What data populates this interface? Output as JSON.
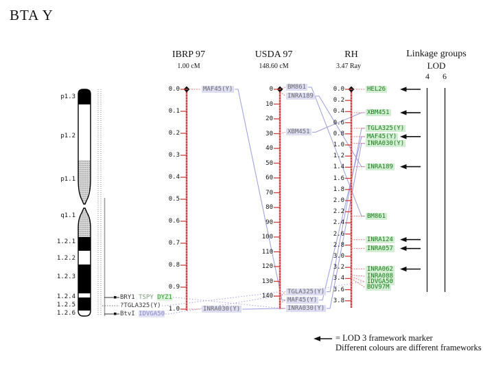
{
  "title": "BTA Y",
  "maps": [
    {
      "id": "ibrp",
      "header": "IBRP 97",
      "subheader": "1.00 cM",
      "ticks": [
        "0.0",
        "0.1",
        "0.2",
        "0.3",
        "0.4",
        "0.5",
        "0.6",
        "0.7",
        "0.8",
        "0.9",
        "1.0"
      ],
      "markers": [
        {
          "name": "MAF45(Y)",
          "pos": 0.0
        },
        {
          "name": "INRA030(Y)",
          "pos": 1.0
        }
      ]
    },
    {
      "id": "usda",
      "header": "USDA 97",
      "subheader": "148.60 cM",
      "ticks": [
        "0",
        "10",
        "20",
        "30",
        "40",
        "50",
        "60",
        "70",
        "80",
        "90",
        "100",
        "110",
        "120",
        "130",
        "140"
      ],
      "markers": [
        {
          "name": "BM861",
          "pos": 0.0,
          "label_pos": -1.4
        },
        {
          "name": "INRA189",
          "pos": 1.5,
          "label_pos": 4.6
        },
        {
          "name": "XBM451",
          "pos": 30.0,
          "label_pos": 29.0
        },
        {
          "name": "TGLA325(Y)",
          "pos": 140.5,
          "label_pos": 137.0
        },
        {
          "name": "MAF45(Y)",
          "pos": 145.0,
          "label_pos": 142.7
        },
        {
          "name": "INRA030(Y)",
          "pos": 148.6,
          "label_pos": 148.3
        }
      ]
    },
    {
      "id": "rh",
      "header": "RH",
      "subheader": "3.47 Ray",
      "ticks": [
        "0.0",
        "0.2",
        "0.4",
        "0.6",
        "0.8",
        "1.0",
        "1.2",
        "1.4",
        "1.6",
        "1.8",
        "2.0",
        "2.2",
        "2.4",
        "2.6",
        "2.8",
        "3.0",
        "3.2",
        "3.4",
        "3.6",
        "3.8"
      ],
      "markers": [
        {
          "name": "HEL26",
          "pos": 0.0,
          "arrow": true
        },
        {
          "name": "XBM451",
          "pos": 0.42,
          "arrow": true
        },
        {
          "name": "TGLA325(Y)",
          "pos": 0.7
        },
        {
          "name": "MAF45(Y)",
          "pos": 0.85,
          "arrow": true
        },
        {
          "name": "INRA030(Y)",
          "pos": 0.97
        },
        {
          "name": "INRA189",
          "pos": 1.39,
          "arrow": true
        },
        {
          "name": "BM861",
          "pos": 2.28
        },
        {
          "name": "INRA124",
          "pos": 2.7,
          "arrow": true
        },
        {
          "name": "INRA057",
          "pos": 2.86,
          "arrow": true
        },
        {
          "name": "INRA062",
          "pos": 3.23,
          "arrow": true
        },
        {
          "name": "INRA088",
          "pos": 3.34,
          "label_pos": 3.36
        },
        {
          "name": "IDVGA50",
          "pos": 3.37,
          "label_pos": 3.46
        },
        {
          "name": "BOV97M",
          "pos": 3.4,
          "label_pos": 3.56
        }
      ]
    }
  ],
  "ideogram": {
    "bands": [
      {
        "label": "p1.3",
        "fill": "black"
      },
      {
        "label": "p1.2",
        "fill": "white"
      },
      {
        "label": "p1.1",
        "fill": "stipple"
      },
      {
        "label": "q1.1",
        "fill": "stipple"
      },
      {
        "label": "1.2.1",
        "fill": "black"
      },
      {
        "label": "1.2.2",
        "fill": "white"
      },
      {
        "label": "1.2.3",
        "fill": "black"
      },
      {
        "label": "1.2.4",
        "fill": "white"
      },
      {
        "label": "1.2.5",
        "fill": "black"
      },
      {
        "label": "1.2.6",
        "fill": "white"
      }
    ],
    "bottom_markers": [
      {
        "id": "DYZ1row",
        "line": "solid",
        "parts": [
          {
            "text": "BRY1 ",
            "color": "#333333"
          },
          {
            "text": "TSPY ",
            "color": "#7a9a7a"
          },
          {
            "text": "DYZ1",
            "color": "#2a9a2a",
            "bg": "#dcf2dc"
          }
        ]
      },
      {
        "id": "TGLA325",
        "line": "dotted",
        "parts": [
          {
            "text": "?TGLA325(Y)",
            "color": "#333333"
          }
        ]
      },
      {
        "id": "IDVGA50",
        "line": "solid",
        "parts": [
          {
            "text": "BtvI ",
            "color": "#333333"
          },
          {
            "text": "IDVGA50",
            "color": "#8585c5",
            "bg": "#e2e2f6"
          }
        ]
      }
    ]
  },
  "linkage": {
    "header": "Linkage groups",
    "lod": "LOD",
    "groups": [
      "4",
      "6"
    ]
  },
  "legend": {
    "line1": "= LOD 3 framework marker",
    "line2": "Different colours are different frameworks"
  },
  "connections": {
    "solid": [
      [
        "ibrp",
        "MAF45(Y)",
        "usda",
        "MAF45(Y)"
      ],
      [
        "ibrp",
        "INRA030(Y)",
        "usda",
        "INRA030(Y)"
      ],
      [
        "usda",
        "BM861",
        "rh",
        "BM861"
      ],
      [
        "usda",
        "INRA189",
        "rh",
        "INRA189"
      ],
      [
        "usda",
        "XBM451",
        "rh",
        "XBM451"
      ],
      [
        "usda",
        "TGLA325(Y)",
        "rh",
        "TGLA325(Y)"
      ],
      [
        "usda",
        "MAF45(Y)",
        "rh",
        "MAF45(Y)"
      ],
      [
        "usda",
        "INRA030(Y)",
        "rh",
        "INRA030(Y)"
      ]
    ],
    "dotted": [
      [
        "chrom",
        "TGLA325",
        "usda",
        "TGLA325(Y)"
      ],
      [
        "chrom",
        "IDVGA50",
        "rh",
        "IDVGA50"
      ],
      [
        "chrom",
        "DYZ1row",
        "usda",
        "INRA030(Y)"
      ]
    ]
  },
  "colors": {
    "scale_line": "#d23b3b",
    "scale_line_overlay": "#ffb3b3",
    "connector": "#e07a7a",
    "homolog_line": "#9a9ade",
    "framework_dotted": "#ab9ade",
    "label_lavender_bg": "#dcdcf2",
    "label_lavender_text": "#6a6a6a",
    "label_green_bg": "#d2eed2",
    "label_green_text": "#1a7a1a"
  }
}
